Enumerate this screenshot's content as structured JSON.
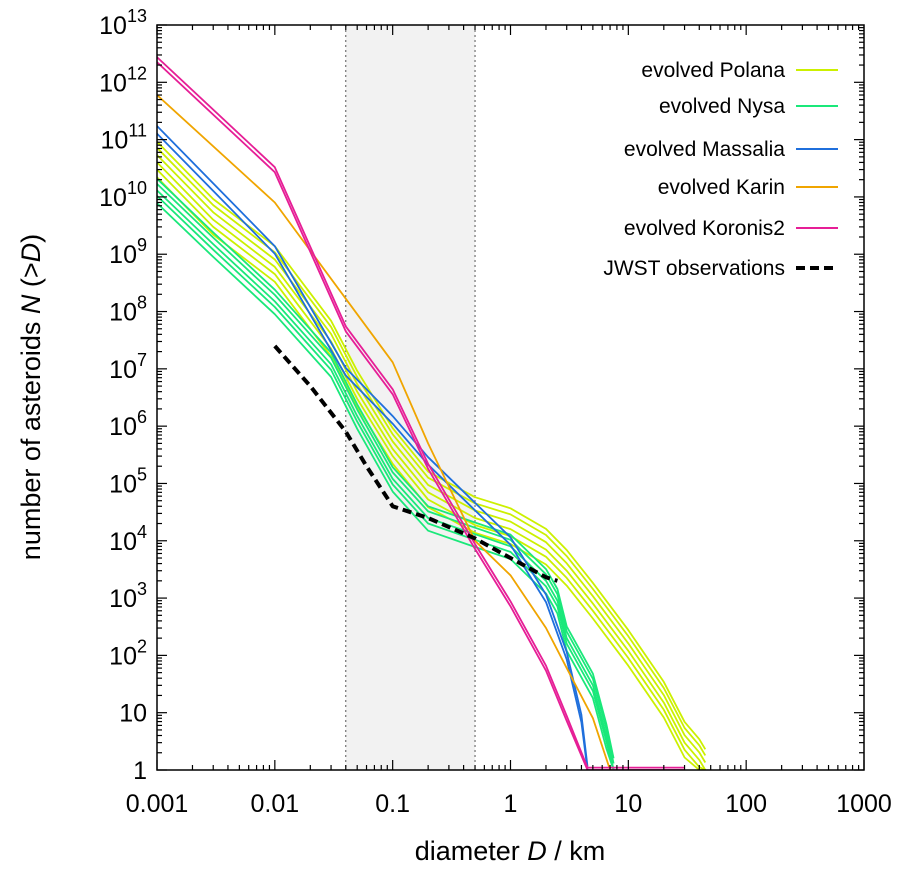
{
  "chart_data": {
    "type": "line",
    "xlabel_prefix": "diameter ",
    "xlabel_var": "D",
    "xlabel_suffix": " / km",
    "ylabel_prefix": "number of asteroids ",
    "ylabel_var": "N",
    "ylabel_suffix": " (>",
    "ylabel_var2": "D",
    "ylabel_close": ")",
    "x_scale": "log",
    "y_scale": "log",
    "xlim": [
      0.001,
      1000
    ],
    "ylim": [
      1,
      10000000000000.0
    ],
    "x_ticks": [
      {
        "value": 0.001,
        "label": "0.001"
      },
      {
        "value": 0.01,
        "label": "0.01"
      },
      {
        "value": 0.1,
        "label": "0.1"
      },
      {
        "value": 1,
        "label": "1"
      },
      {
        "value": 10,
        "label": "10"
      },
      {
        "value": 100,
        "label": "100"
      },
      {
        "value": 1000,
        "label": "1000"
      }
    ],
    "y_ticks": [
      {
        "value": 1,
        "base": "1",
        "exp": ""
      },
      {
        "value": 10,
        "base": "10",
        "exp": ""
      },
      {
        "value": 100,
        "base": "10",
        "exp": "2"
      },
      {
        "value": 1000,
        "base": "10",
        "exp": "3"
      },
      {
        "value": 10000,
        "base": "10",
        "exp": "4"
      },
      {
        "value": 100000,
        "base": "10",
        "exp": "5"
      },
      {
        "value": 1000000,
        "base": "10",
        "exp": "6"
      },
      {
        "value": 10000000,
        "base": "10",
        "exp": "7"
      },
      {
        "value": 100000000,
        "base": "10",
        "exp": "8"
      },
      {
        "value": 1000000000,
        "base": "10",
        "exp": "9"
      },
      {
        "value": 10000000000,
        "base": "10",
        "exp": "10"
      },
      {
        "value": 100000000000,
        "base": "10",
        "exp": "11"
      },
      {
        "value": 1000000000000,
        "base": "10",
        "exp": "12"
      },
      {
        "value": 10000000000000,
        "base": "10",
        "exp": "13"
      }
    ],
    "shaded_region": {
      "x": [
        0.04,
        0.5
      ],
      "color": "#f2f2f2"
    },
    "grid": false,
    "legend_position": "top-right",
    "series": [
      {
        "name": "evolved Polana",
        "color": "#ccf000",
        "points": [
          [
            0.001,
            40000000000.0
          ],
          [
            0.003,
            4000000000.0
          ],
          [
            0.01,
            600000000.0
          ],
          [
            0.03,
            30000000.0
          ],
          [
            0.05,
            4000000.0
          ],
          [
            0.1,
            400000.0
          ],
          [
            0.2,
            70000.0
          ],
          [
            0.5,
            25000.0
          ],
          [
            1,
            16000.0
          ],
          [
            2,
            7000.0
          ],
          [
            3,
            3000.0
          ],
          [
            5,
            800
          ],
          [
            10,
            120
          ],
          [
            20,
            15
          ],
          [
            30,
            3
          ],
          [
            40,
            1.5
          ],
          [
            45,
            1
          ]
        ],
        "variant_factors": [
          0.55,
          0.75,
          1.0,
          1.35,
          1.8,
          2.3
        ]
      },
      {
        "name": "evolved Nysa",
        "color": "#1ae87a",
        "points": [
          [
            0.001,
            13000000000.0
          ],
          [
            0.003,
            1500000000.0
          ],
          [
            0.01,
            150000000.0
          ],
          [
            0.03,
            12000000.0
          ],
          [
            0.05,
            1500000.0
          ],
          [
            0.1,
            120000.0
          ],
          [
            0.2,
            25000.0
          ],
          [
            0.5,
            13000.0
          ],
          [
            1,
            8000.0
          ],
          [
            2,
            2000.0
          ],
          [
            2.5,
            900
          ],
          [
            3,
            200
          ],
          [
            5,
            30
          ],
          [
            6.5,
            4
          ],
          [
            7.5,
            1
          ]
        ],
        "variant_factors": [
          0.6,
          0.8,
          1.0,
          1.3,
          1.6
        ]
      },
      {
        "name": "evolved Massalia",
        "color": "#1f6fdc",
        "points": [
          [
            0.001,
            150000000000.0
          ],
          [
            0.003,
            15000000000.0
          ],
          [
            0.01,
            1200000000.0
          ],
          [
            0.04,
            9000000.0
          ],
          [
            0.1,
            1300000.0
          ],
          [
            0.2,
            250000.0
          ],
          [
            0.5,
            40000.0
          ],
          [
            1,
            10000.0
          ],
          [
            2,
            1000.0
          ],
          [
            3,
            100
          ],
          [
            4,
            8
          ],
          [
            4.5,
            1
          ]
        ],
        "variant_factors": [
          0.85,
          1.15
        ]
      },
      {
        "name": "evolved Karin",
        "color": "#f0a500",
        "points": [
          [
            0.001,
            600000000000.0
          ],
          [
            0.01,
            8000000000.0
          ],
          [
            0.1,
            13000000.0
          ],
          [
            0.2,
            500000.0
          ],
          [
            0.5,
            10000.0
          ],
          [
            1,
            2500.0
          ],
          [
            2,
            300
          ],
          [
            3,
            60
          ],
          [
            5,
            8
          ],
          [
            7,
            1
          ]
        ],
        "variant_factors": [
          1.0
        ]
      },
      {
        "name": "evolved Koronis2",
        "color": "#e61e96",
        "points": [
          [
            0.001,
            2500000000000.0
          ],
          [
            0.01,
            30000000000.0
          ],
          [
            0.04,
            50000000.0
          ],
          [
            0.1,
            4000000.0
          ],
          [
            0.2,
            200000.0
          ],
          [
            0.5,
            8000.0
          ],
          [
            1,
            800
          ],
          [
            2,
            60
          ],
          [
            3,
            8
          ],
          [
            4.5,
            1
          ],
          [
            30,
            1
          ]
        ],
        "variant_factors": [
          0.9,
          1.1
        ]
      },
      {
        "name": "JWST observations",
        "color": "#000000",
        "dashed": true,
        "points": [
          [
            0.01,
            25000000.0
          ],
          [
            0.02,
            5000000.0
          ],
          [
            0.04,
            800000.0
          ],
          [
            0.06,
            200000.0
          ],
          [
            0.1,
            40000.0
          ],
          [
            0.2,
            25000.0
          ],
          [
            0.5,
            11000.0
          ],
          [
            1,
            5000.0
          ],
          [
            2,
            2300.0
          ],
          [
            2.5,
            2000.0
          ]
        ],
        "variant_factors": [
          1.0
        ]
      }
    ]
  }
}
